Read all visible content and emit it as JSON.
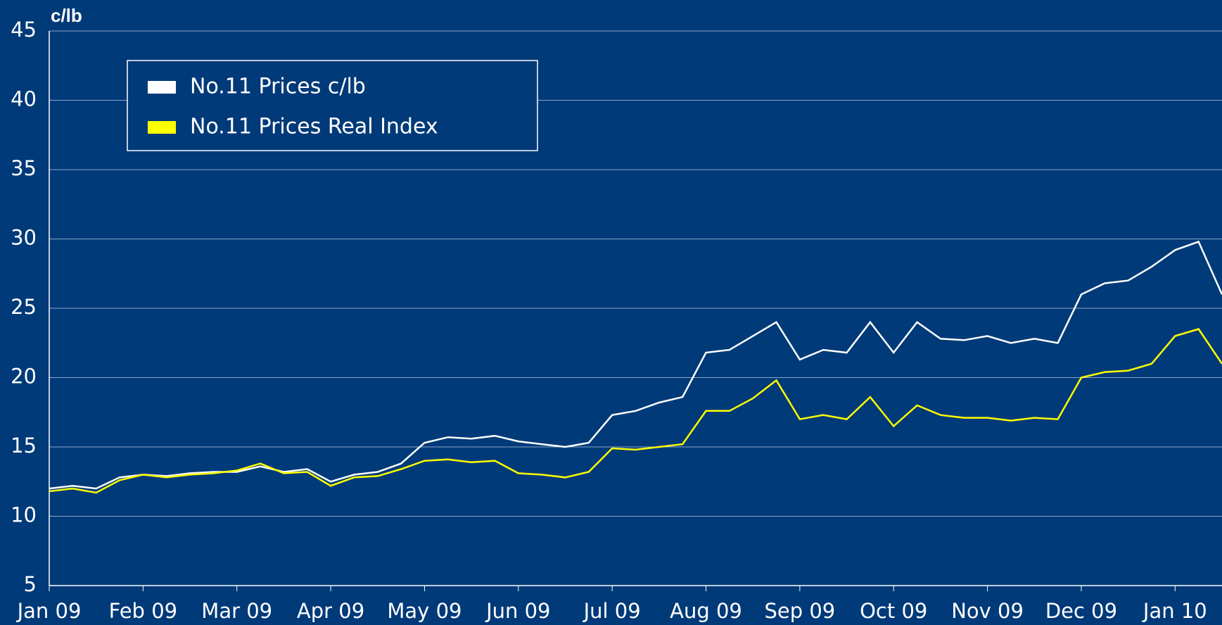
{
  "chart_data": {
    "type": "line",
    "y_label": "c/lb",
    "categories": [
      "Jan 09",
      null,
      null,
      null,
      "Feb 09",
      null,
      null,
      null,
      "Mar 09",
      null,
      null,
      null,
      "Apr 09",
      null,
      null,
      null,
      "May 09",
      null,
      null,
      null,
      "Jun 09",
      null,
      null,
      null,
      "Jul 09",
      null,
      null,
      null,
      "Aug 09",
      null,
      null,
      null,
      "Sep 09",
      null,
      null,
      null,
      "Oct 09",
      null,
      null,
      null,
      "Nov 09",
      null,
      null,
      null,
      "Dec 09",
      null,
      null,
      null,
      "Jan 10",
      null,
      null
    ],
    "series": [
      {
        "name": "No.11 Prices c/lb",
        "color": "#ffffff",
        "values": [
          12,
          12.2,
          12,
          12.8,
          13,
          12.9,
          13.1,
          13.2,
          13.2,
          13.6,
          13.2,
          13.4,
          12.5,
          13,
          13.2,
          13.8,
          15.3,
          15.7,
          15.6,
          15.8,
          15.4,
          15.2,
          15,
          15.3,
          17.3,
          17.6,
          18.2,
          18.6,
          21.8,
          22,
          23,
          24,
          21.3,
          22,
          21.8,
          24,
          21.8,
          24,
          22.8,
          22.7,
          23,
          22.5,
          22.8,
          22.5,
          26,
          26.8,
          27,
          28,
          29.2,
          29.8,
          26
        ]
      },
      {
        "name": "No.11 Prices Real Index",
        "color": "#ffff00",
        "values": [
          11.8,
          12,
          11.7,
          12.6,
          13,
          12.8,
          13,
          13.1,
          13.3,
          13.8,
          13.1,
          13.2,
          12.2,
          12.8,
          12.9,
          13.4,
          14,
          14.1,
          13.9,
          14,
          13.1,
          13,
          12.8,
          13.2,
          14.9,
          14.8,
          15,
          15.2,
          17.6,
          17.6,
          18.5,
          19.8,
          17,
          17.3,
          17,
          18.6,
          16.5,
          18,
          17.3,
          17.1,
          17.1,
          16.9,
          17.1,
          17,
          20,
          20.4,
          20.5,
          21,
          23,
          23.5,
          21
        ]
      }
    ],
    "ylim": [
      5,
      45
    ],
    "yticks": [
      5,
      10,
      15,
      20,
      25,
      30,
      35,
      40,
      45
    ],
    "grid": true
  }
}
